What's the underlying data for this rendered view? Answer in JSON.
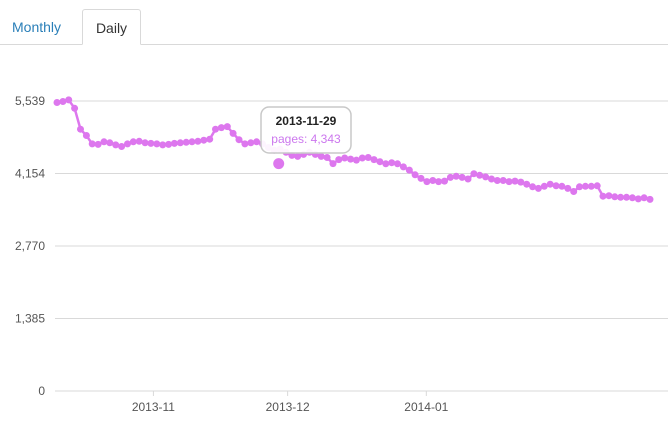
{
  "tabs": [
    {
      "label": "Monthly",
      "active": false
    },
    {
      "label": "Daily",
      "active": true
    }
  ],
  "colors": {
    "series": "#dd77ee",
    "grid": "#d9d9d9",
    "tab_link": "#2a7fb8"
  },
  "chart_data": {
    "type": "line",
    "title": "",
    "xlabel": "",
    "ylabel": "",
    "x_start": "2013-10-10",
    "x_end": "2014-02-20",
    "ylim": [
      0,
      5539
    ],
    "yticks": [
      "5,539",
      "4,154",
      "2,770",
      "1,385",
      "0"
    ],
    "xticks": [
      {
        "label": "2013-11",
        "date": "2013-11-01"
      },
      {
        "label": "2013-12",
        "date": "2013-12-01"
      },
      {
        "label": "2014-01",
        "date": "2014-01-01"
      }
    ],
    "grid": true,
    "series": [
      {
        "values": [
          5510,
          5530,
          5560,
          5400,
          5000,
          4880,
          4720,
          4710,
          4760,
          4740,
          4700,
          4670,
          4720,
          4760,
          4770,
          4740,
          4730,
          4720,
          4700,
          4710,
          4730,
          4740,
          4750,
          4760,
          4770,
          4790,
          4810,
          5000,
          5030,
          5050,
          4920,
          4800,
          4720,
          4740,
          4760,
          4720,
          4650,
          4600,
          4620,
          4560,
          4500,
          4480,
          4520,
          4560,
          4520,
          4480,
          4460,
          4343,
          4420,
          4450,
          4430,
          4410,
          4450,
          4460,
          4420,
          4380,
          4340,
          4360,
          4340,
          4280,
          4220,
          4130,
          4060,
          4000,
          4020,
          4000,
          4010,
          4080,
          4100,
          4080,
          4050,
          4150,
          4120,
          4090,
          4050,
          4020,
          4020,
          4000,
          4010,
          3990,
          3950,
          3900,
          3870,
          3910,
          3950,
          3920,
          3910,
          3870,
          3810,
          3900,
          3910,
          3910,
          3920,
          3720,
          3730,
          3710,
          3700,
          3700,
          3690,
          3670,
          3690,
          3660
        ]
      }
    ],
    "tooltip": {
      "title": "2013-11-29",
      "body": "pages: 4,343",
      "date": "2013-11-29",
      "value": 4343
    }
  }
}
